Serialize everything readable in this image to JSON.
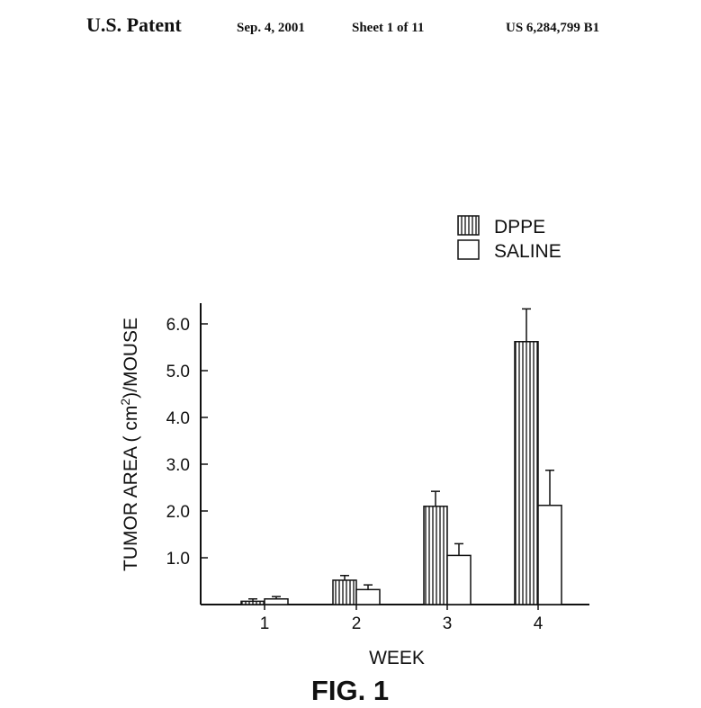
{
  "header": {
    "left": "U.S. Patent",
    "date": "Sep. 4, 2001",
    "sheet": "Sheet 1 of 11",
    "patent_no": "US 6,284,799 B1"
  },
  "figure_label": "FIG. 1",
  "chart_data": {
    "type": "bar",
    "categories": [
      "1",
      "2",
      "3",
      "4"
    ],
    "series": [
      {
        "name": "DPPE",
        "values": [
          0.07,
          0.52,
          2.1,
          5.62
        ],
        "errors": [
          0.05,
          0.1,
          0.32,
          0.7
        ],
        "fill": "vertical-hatch"
      },
      {
        "name": "SALINE",
        "values": [
          0.12,
          0.32,
          1.05,
          2.12
        ],
        "errors": [
          0.05,
          0.1,
          0.25,
          0.75
        ],
        "fill": "white"
      }
    ],
    "xlabel": "WEEK",
    "ylabel_main": "TUMOR AREA ( cm",
    "ylabel_sup": "2",
    "ylabel_tail": ")/MOUSE",
    "yticks": [
      "1.0",
      "2.0",
      "3.0",
      "4.0",
      "5.0",
      "6.0"
    ],
    "ylim": [
      0,
      6.4
    ],
    "legend_position": "top-right"
  }
}
